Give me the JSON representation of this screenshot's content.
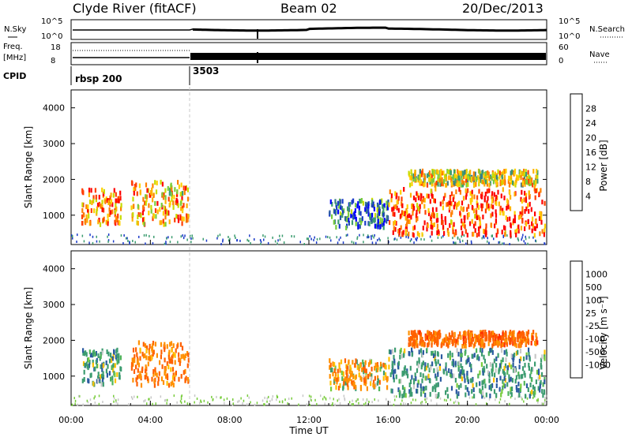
{
  "header": {
    "station": "Clyde River (fitACF)",
    "beam": "Beam 02",
    "date": "20/Dec/2013"
  },
  "strip": {
    "nsky_label": "N.Sky",
    "nsearch_label": "N.Search",
    "noise_ticks": [
      "10^5",
      "10^0"
    ],
    "freq_label_1": "Freq.",
    "freq_label_2": "[MHz]",
    "freq_ticks": [
      "18",
      "8"
    ],
    "nave_label": "Nave",
    "nave_ticks": [
      "60",
      "0"
    ],
    "cpid_label": "CPID",
    "cpid_values": [
      {
        "start_hour": 0,
        "label": "rbsp 200"
      },
      {
        "start_hour": 6,
        "label": "3503"
      }
    ]
  },
  "chart_data": [
    {
      "type": "heatmap",
      "title": "",
      "ylabel": "Slant Range [km]",
      "xlabel": "",
      "xlim": [
        0,
        24
      ],
      "ylim": [
        180,
        4500
      ],
      "yticks": [
        "1000",
        "2000",
        "3000",
        "4000"
      ],
      "colorbar": {
        "label": "Power [dB]",
        "ticks": [
          "28",
          "24",
          "20",
          "16",
          "12",
          "8",
          "4"
        ],
        "colors": [
          "#ff0000",
          "#ff4000",
          "#ff8000",
          "#ffb000",
          "#ffd000",
          "#c8dc00",
          "#78cc3c",
          "#3c9c70",
          "#3a7e86",
          "#2a5aa0",
          "#1a3ac8",
          "#0000ff"
        ]
      },
      "regions": [
        {
          "x": [
            0.5,
            2.5
          ],
          "y": [
            800,
            1800
          ],
          "power_db": 25
        },
        {
          "x": [
            3.0,
            5.9
          ],
          "y": [
            800,
            2000
          ],
          "power_db": 22
        },
        {
          "x": [
            13.0,
            16.0
          ],
          "y": [
            700,
            1500
          ],
          "power_db": 8
        },
        {
          "x": [
            16.0,
            23.9
          ],
          "y": [
            500,
            1800
          ],
          "power_db": 27
        },
        {
          "x": [
            17.0,
            23.5
          ],
          "y": [
            1900,
            2300
          ],
          "power_db": 18
        }
      ]
    },
    {
      "type": "heatmap",
      "title": "",
      "ylabel": "Slant Range [km]",
      "xlabel": "Time UT",
      "xlim": [
        0,
        24
      ],
      "ylim": [
        180,
        4500
      ],
      "yticks": [
        "1000",
        "2000",
        "3000",
        "4000"
      ],
      "xticks": [
        "00:00",
        "04:00",
        "08:00",
        "12:00",
        "16:00",
        "20:00",
        "00:00"
      ],
      "colorbar": {
        "label": "Velocity [m s⁻¹]",
        "ticks": [
          "1000",
          "500",
          "100",
          "25",
          "-25",
          "-100",
          "-500",
          "-1000"
        ],
        "colors": [
          "#1a3ac8",
          "#2a5aa0",
          "#3c9c70",
          "#50b45a",
          "#78cc3c",
          "#c8c8c8",
          "#ffc000",
          "#ff9000",
          "#ff6000",
          "#ff3000",
          "#ff0000"
        ]
      },
      "regions": [
        {
          "x": [
            0.5,
            2.5
          ],
          "y": [
            800,
            1800
          ],
          "velocity_ms": 150
        },
        {
          "x": [
            3.0,
            5.9
          ],
          "y": [
            800,
            2000
          ],
          "velocity_ms": -300
        },
        {
          "x": [
            13.0,
            16.0
          ],
          "y": [
            700,
            1500
          ],
          "velocity_ms": -150
        },
        {
          "x": [
            16.0,
            23.9
          ],
          "y": [
            500,
            1800
          ],
          "velocity_ms": 200
        },
        {
          "x": [
            17.0,
            23.5
          ],
          "y": [
            1900,
            2300
          ],
          "velocity_ms": -400
        }
      ]
    }
  ]
}
